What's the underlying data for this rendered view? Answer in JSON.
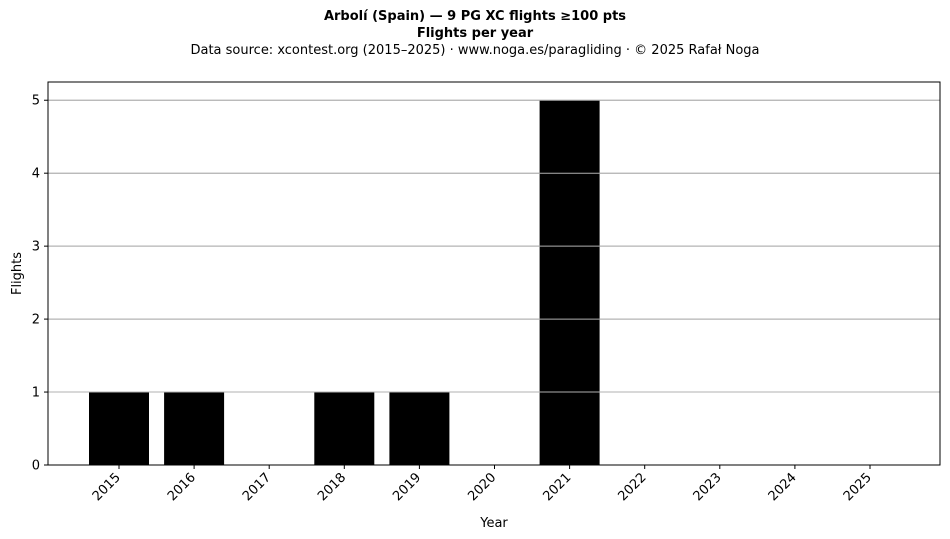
{
  "chart_data": {
    "type": "bar",
    "title": "Arbolí (Spain)  —  9 PG XC flights ≥100 pts",
    "subtitle": "Flights per year",
    "source": "Data source: xcontest.org (2015–2025)  ·  www.noga.es/paragliding  ·  © 2025 Rafał Noga",
    "categories": [
      "2015",
      "2016",
      "2017",
      "2018",
      "2019",
      "2020",
      "2021",
      "2022",
      "2023",
      "2024",
      "2025"
    ],
    "values": [
      1,
      1,
      0,
      1,
      1,
      0,
      5,
      0,
      0,
      0,
      0
    ],
    "xlabel": "Year",
    "ylabel": "Flights",
    "ylim": [
      0,
      5.25
    ],
    "yticks": [
      0,
      1,
      2,
      3,
      4,
      5
    ],
    "grid": "y",
    "bar_color": "#000000",
    "grid_color": "#b0b0b0"
  }
}
